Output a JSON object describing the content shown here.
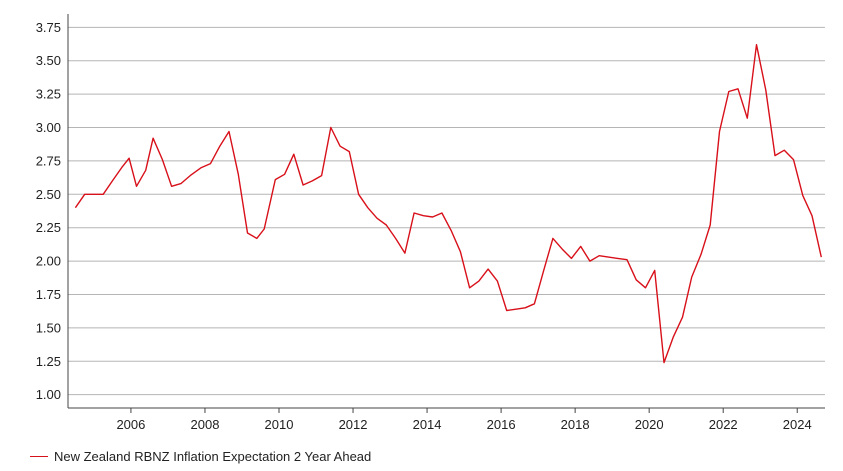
{
  "colors": {
    "series": "#d8101a",
    "grid": "#b5b5b5",
    "axis": "#444444",
    "text": "#222222"
  },
  "chart_data": {
    "type": "line",
    "title": "",
    "xlabel": "",
    "ylabel": "",
    "xlim": [
      2004.3,
      2024.75
    ],
    "ylim": [
      0.9,
      3.85
    ],
    "grid": "horizontal",
    "legend_position": "bottom-left",
    "x_ticks": [
      "2006",
      "2008",
      "2010",
      "2012",
      "2014",
      "2016",
      "2018",
      "2020",
      "2022",
      "2024"
    ],
    "y_ticks": [
      "1.00",
      "1.25",
      "1.50",
      "1.75",
      "2.00",
      "2.25",
      "2.50",
      "2.75",
      "3.00",
      "3.25",
      "3.50",
      "3.75"
    ],
    "series": [
      {
        "name": "New Zealand RBNZ Inflation Expectation 2 Year Ahead",
        "color": "#d8101a",
        "x": [
          2004.5,
          2004.75,
          2005.0,
          2005.25,
          2005.5,
          2005.75,
          2005.95,
          2006.15,
          2006.4,
          2006.6,
          2006.85,
          2007.1,
          2007.35,
          2007.6,
          2007.9,
          2008.15,
          2008.4,
          2008.65,
          2008.9,
          2009.15,
          2009.4,
          2009.6,
          2009.9,
          2010.15,
          2010.4,
          2010.65,
          2010.9,
          2011.15,
          2011.4,
          2011.65,
          2011.9,
          2012.15,
          2012.4,
          2012.65,
          2012.9,
          2013.15,
          2013.4,
          2013.65,
          2013.9,
          2014.15,
          2014.4,
          2014.65,
          2014.9,
          2015.15,
          2015.4,
          2015.65,
          2015.9,
          2016.15,
          2016.4,
          2016.65,
          2016.9,
          2017.15,
          2017.4,
          2017.65,
          2017.9,
          2018.15,
          2018.4,
          2018.65,
          2018.9,
          2019.15,
          2019.4,
          2019.65,
          2019.9,
          2020.15,
          2020.4,
          2020.65,
          2020.9,
          2021.15,
          2021.4,
          2021.65,
          2021.9,
          2022.15,
          2022.4,
          2022.65,
          2022.9,
          2023.15,
          2023.4,
          2023.65,
          2023.9,
          2024.15,
          2024.4,
          2024.65
        ],
        "values": [
          2.4,
          2.5,
          2.5,
          2.5,
          2.6,
          2.7,
          2.77,
          2.56,
          2.68,
          2.92,
          2.76,
          2.56,
          2.58,
          2.64,
          2.7,
          2.73,
          2.86,
          2.97,
          2.65,
          2.21,
          2.17,
          2.24,
          2.61,
          2.65,
          2.8,
          2.57,
          2.6,
          2.64,
          3.0,
          2.86,
          2.82,
          2.5,
          2.4,
          2.32,
          2.27,
          2.17,
          2.06,
          2.36,
          2.34,
          2.33,
          2.36,
          2.23,
          2.07,
          1.8,
          1.85,
          1.94,
          1.85,
          1.63,
          1.64,
          1.65,
          1.68,
          1.93,
          2.17,
          2.09,
          2.02,
          2.11,
          2.0,
          2.04,
          2.03,
          2.02,
          2.01,
          1.86,
          1.8,
          1.93,
          1.24,
          1.43,
          1.58,
          1.88,
          2.05,
          2.27,
          2.97,
          3.27,
          3.29,
          3.07,
          3.62,
          3.28,
          2.79,
          2.83,
          2.76,
          2.49,
          2.34,
          2.03
        ]
      }
    ]
  },
  "legend": {
    "label": "New Zealand RBNZ Inflation Expectation 2 Year Ahead"
  }
}
